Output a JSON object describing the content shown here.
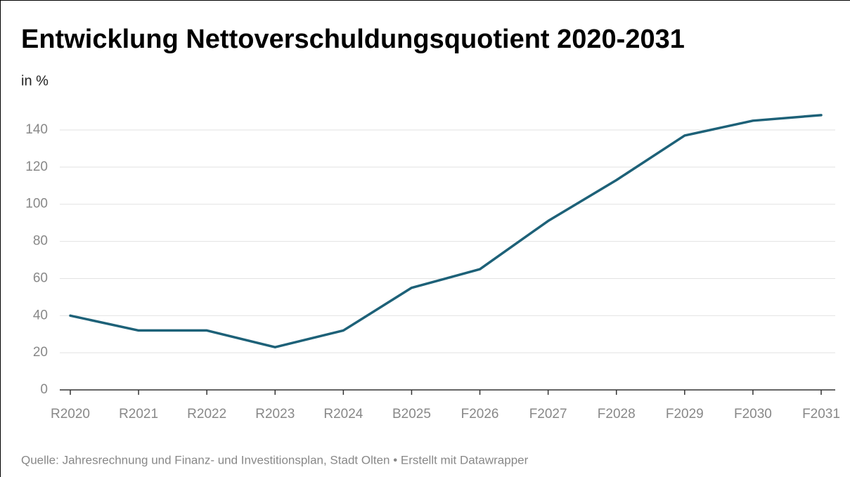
{
  "chart_data": {
    "type": "line",
    "title": "Entwicklung Nettoverschuldungsquotient 2020-2031",
    "subtitle": "in %",
    "source": "Quelle: Jahresrechnung und Finanz- und Investitionsplan, Stadt Olten • Erstellt mit Datawrapper",
    "categories": [
      "R2020",
      "R2021",
      "R2022",
      "R2023",
      "R2024",
      "B2025",
      "F2026",
      "F2027",
      "F2028",
      "F2029",
      "F2030",
      "F2031"
    ],
    "values": [
      40,
      32,
      32,
      23,
      32,
      55,
      65,
      91,
      113,
      137,
      145,
      148
    ],
    "color": "#1d6178",
    "ylim": [
      0,
      150
    ],
    "yticks": [
      0,
      20,
      40,
      60,
      80,
      100,
      120,
      140
    ],
    "grid": true
  }
}
